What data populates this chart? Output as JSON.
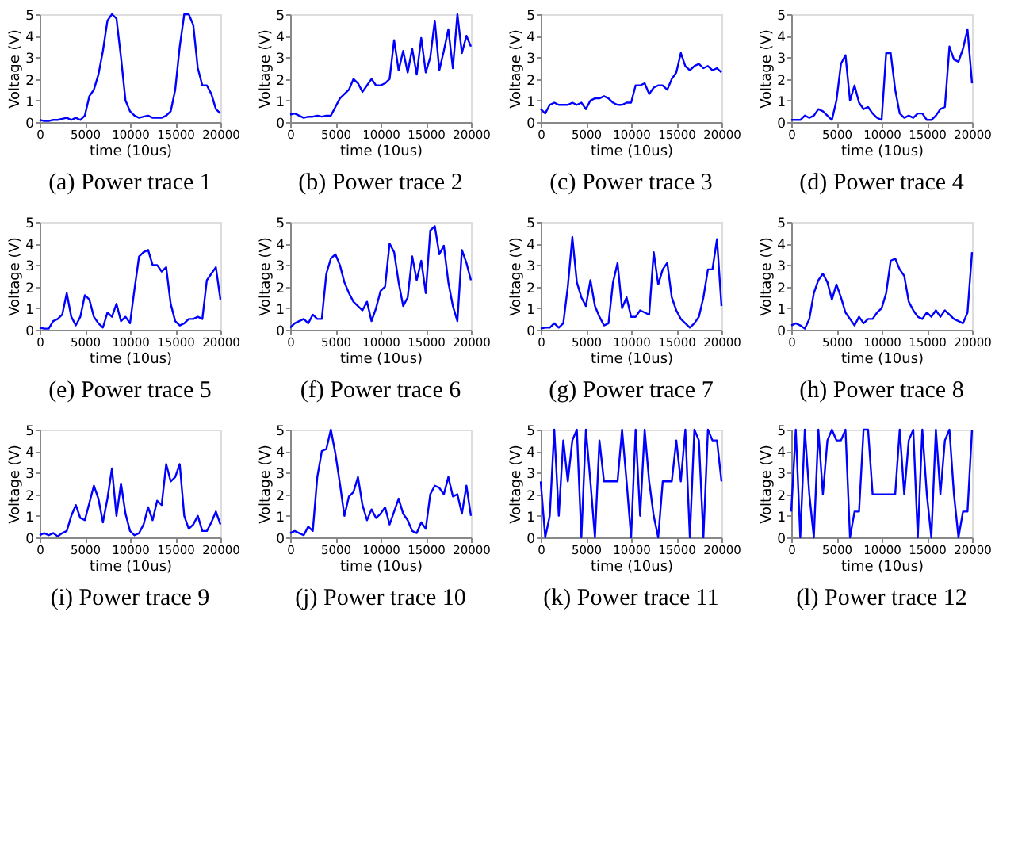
{
  "chart_data": [
    {
      "type": "line",
      "title": "(a) Power trace 1",
      "xlabel": "time (10us)",
      "ylabel": "Voltage (V)",
      "color": "#0000ff",
      "grid": false,
      "xlim": [
        0,
        20000
      ],
      "ylim": [
        0,
        5
      ],
      "xticks": [
        0,
        5000,
        10000,
        15000,
        20000
      ],
      "yticks": [
        0,
        1,
        2,
        3,
        4,
        5
      ],
      "x": [
        0,
        500,
        1000,
        1500,
        2000,
        2500,
        3000,
        3500,
        4000,
        4500,
        5000,
        5500,
        6000,
        6500,
        7000,
        7500,
        8000,
        8500,
        9000,
        9500,
        10000,
        10500,
        11000,
        11500,
        12000,
        12500,
        13000,
        13500,
        14000,
        14500,
        15000,
        15500,
        16000,
        16500,
        17000,
        17500,
        18000,
        18500,
        19000,
        19500,
        20000
      ],
      "values": [
        0.1,
        0.05,
        0.05,
        0.1,
        0.1,
        0.15,
        0.2,
        0.1,
        0.2,
        0.1,
        0.3,
        1.2,
        1.5,
        2.2,
        3.3,
        4.7,
        5,
        4.8,
        3.0,
        1.0,
        0.5,
        0.3,
        0.2,
        0.25,
        0.3,
        0.2,
        0.2,
        0.2,
        0.3,
        0.5,
        1.5,
        3.5,
        5,
        5,
        4.5,
        2.5,
        1.7,
        1.7,
        1.3,
        0.6,
        0.4
      ]
    },
    {
      "type": "line",
      "title": "(b) Power trace 2",
      "xlabel": "time (10us)",
      "ylabel": "Voltage (V)",
      "color": "#0000ff",
      "grid": false,
      "xlim": [
        0,
        20000
      ],
      "ylim": [
        0,
        5
      ],
      "xticks": [
        0,
        5000,
        10000,
        15000,
        20000
      ],
      "yticks": [
        0,
        1,
        2,
        3,
        4,
        5
      ],
      "x": [
        0,
        500,
        1000,
        1500,
        2000,
        2500,
        3000,
        3500,
        4000,
        4500,
        5000,
        5500,
        6000,
        6500,
        7000,
        7500,
        8000,
        8500,
        9000,
        9500,
        10000,
        10500,
        11000,
        11500,
        12000,
        12500,
        13000,
        13500,
        14000,
        14500,
        15000,
        15500,
        16000,
        16500,
        17000,
        17500,
        18000,
        18500,
        19000,
        19500,
        20000
      ],
      "values": [
        0.35,
        0.4,
        0.3,
        0.2,
        0.25,
        0.25,
        0.3,
        0.25,
        0.3,
        0.3,
        0.7,
        1.1,
        1.3,
        1.5,
        2.0,
        1.8,
        1.4,
        1.7,
        2.0,
        1.7,
        1.7,
        1.8,
        2.0,
        3.8,
        2.4,
        3.3,
        2.3,
        3.4,
        2.2,
        3.9,
        2.3,
        3.0,
        4.7,
        2.4,
        3.3,
        4.3,
        2.5,
        5.0,
        3.2,
        4.0,
        3.5
      ]
    },
    {
      "type": "line",
      "title": "(c) Power trace 3",
      "xlabel": "time (10us)",
      "ylabel": "Voltage (V)",
      "color": "#0000ff",
      "grid": false,
      "xlim": [
        0,
        20000
      ],
      "ylim": [
        0,
        5
      ],
      "xticks": [
        0,
        5000,
        10000,
        15000,
        20000
      ],
      "yticks": [
        0,
        1,
        2,
        3,
        4,
        5
      ],
      "x": [
        0,
        500,
        1000,
        1500,
        2000,
        2500,
        3000,
        3500,
        4000,
        4500,
        5000,
        5500,
        6000,
        6500,
        7000,
        7500,
        8000,
        8500,
        9000,
        9500,
        10000,
        10500,
        11000,
        11500,
        12000,
        12500,
        13000,
        13500,
        14000,
        14500,
        15000,
        15500,
        16000,
        16500,
        17000,
        17500,
        18000,
        18500,
        19000,
        19500,
        20000
      ],
      "values": [
        0.6,
        0.4,
        0.8,
        0.9,
        0.8,
        0.8,
        0.8,
        0.9,
        0.8,
        0.9,
        0.6,
        1.0,
        1.1,
        1.1,
        1.2,
        1.1,
        0.9,
        0.8,
        0.8,
        0.9,
        0.9,
        1.7,
        1.7,
        1.8,
        1.3,
        1.6,
        1.7,
        1.7,
        1.5,
        2.0,
        2.3,
        3.2,
        2.6,
        2.4,
        2.6,
        2.7,
        2.5,
        2.6,
        2.4,
        2.5,
        2.3
      ]
    },
    {
      "type": "line",
      "title": "(d) Power trace 4",
      "xlabel": "time (10us)",
      "ylabel": "Voltage (V)",
      "color": "#0000ff",
      "grid": false,
      "xlim": [
        0,
        20000
      ],
      "ylim": [
        0,
        5
      ],
      "xticks": [
        0,
        5000,
        10000,
        15000,
        20000
      ],
      "yticks": [
        0,
        1,
        2,
        3,
        4,
        5
      ],
      "x": [
        0,
        500,
        1000,
        1500,
        2000,
        2500,
        3000,
        3500,
        4000,
        4500,
        5000,
        5500,
        6000,
        6500,
        7000,
        7500,
        8000,
        8500,
        9000,
        9500,
        10000,
        10500,
        11000,
        11500,
        12000,
        12500,
        13000,
        13500,
        14000,
        14500,
        15000,
        15500,
        16000,
        16500,
        17000,
        17500,
        18000,
        18500,
        19000,
        19500,
        20000
      ],
      "values": [
        0.1,
        0.1,
        0.1,
        0.3,
        0.2,
        0.3,
        0.6,
        0.5,
        0.3,
        0.1,
        1.0,
        2.7,
        3.1,
        1.0,
        1.7,
        0.9,
        0.6,
        0.7,
        0.4,
        0.2,
        0.1,
        3.2,
        3.2,
        1.5,
        0.4,
        0.2,
        0.3,
        0.2,
        0.4,
        0.4,
        0.1,
        0.1,
        0.3,
        0.6,
        0.7,
        3.5,
        2.9,
        2.8,
        3.4,
        4.3,
        1.8
      ]
    },
    {
      "type": "line",
      "title": "(e) Power trace 5",
      "xlabel": "time (10us)",
      "ylabel": "Voltage (V)",
      "color": "#0000ff",
      "grid": false,
      "xlim": [
        0,
        20000
      ],
      "ylim": [
        0,
        5
      ],
      "xticks": [
        0,
        5000,
        10000,
        15000,
        20000
      ],
      "yticks": [
        0,
        1,
        2,
        3,
        4,
        5
      ],
      "x": [
        0,
        500,
        1000,
        1500,
        2000,
        2500,
        3000,
        3500,
        4000,
        4500,
        5000,
        5500,
        6000,
        6500,
        7000,
        7500,
        8000,
        8500,
        9000,
        9500,
        10000,
        10500,
        11000,
        11500,
        12000,
        12500,
        13000,
        13500,
        14000,
        14500,
        15000,
        15500,
        16000,
        16500,
        17000,
        17500,
        18000,
        18500,
        19000,
        19500,
        20000
      ],
      "values": [
        0.1,
        0.05,
        0.05,
        0.4,
        0.5,
        0.7,
        1.7,
        0.6,
        0.2,
        0.6,
        1.6,
        1.4,
        0.6,
        0.3,
        0.1,
        0.8,
        0.6,
        1.2,
        0.4,
        0.6,
        0.3,
        1.9,
        3.4,
        3.6,
        3.7,
        3.0,
        3.0,
        2.7,
        2.9,
        1.2,
        0.4,
        0.2,
        0.3,
        0.5,
        0.5,
        0.6,
        0.5,
        2.3,
        2.6,
        2.9,
        1.4
      ]
    },
    {
      "type": "line",
      "title": "(f) Power trace 6",
      "xlabel": "time (10us)",
      "ylabel": "Voltage (V)",
      "color": "#0000ff",
      "grid": false,
      "xlim": [
        0,
        20000
      ],
      "ylim": [
        0,
        5
      ],
      "xticks": [
        0,
        5000,
        10000,
        15000,
        20000
      ],
      "yticks": [
        0,
        1,
        2,
        3,
        4,
        5
      ],
      "x": [
        0,
        500,
        1000,
        1500,
        2000,
        2500,
        3000,
        3500,
        4000,
        4500,
        5000,
        5500,
        6000,
        6500,
        7000,
        7500,
        8000,
        8500,
        9000,
        9500,
        10000,
        10500,
        11000,
        11500,
        12000,
        12500,
        13000,
        13500,
        14000,
        14500,
        15000,
        15500,
        16000,
        16500,
        17000,
        17500,
        18000,
        18500,
        19000,
        19500,
        20000
      ],
      "values": [
        0.1,
        0.3,
        0.4,
        0.5,
        0.3,
        0.7,
        0.5,
        0.5,
        2.6,
        3.3,
        3.5,
        3.0,
        2.2,
        1.7,
        1.3,
        1.1,
        0.9,
        1.3,
        0.4,
        1.0,
        1.8,
        2.0,
        4.0,
        3.6,
        2.2,
        1.1,
        1.5,
        3.4,
        2.3,
        3.2,
        1.7,
        4.6,
        4.8,
        3.5,
        3.9,
        2.2,
        1.1,
        0.4,
        3.7,
        3.1,
        2.3
      ]
    },
    {
      "type": "line",
      "title": "(g) Power trace 7",
      "xlabel": "time (10us)",
      "ylabel": "Voltage (V)",
      "color": "#0000ff",
      "grid": false,
      "xlim": [
        0,
        20000
      ],
      "ylim": [
        0,
        5
      ],
      "xticks": [
        0,
        5000,
        10000,
        15000,
        20000
      ],
      "yticks": [
        0,
        1,
        2,
        3,
        4,
        5
      ],
      "x": [
        0,
        500,
        1000,
        1500,
        2000,
        2500,
        3000,
        3500,
        4000,
        4500,
        5000,
        5500,
        6000,
        6500,
        7000,
        7500,
        8000,
        8500,
        9000,
        9500,
        10000,
        10500,
        11000,
        11500,
        12000,
        12500,
        13000,
        13500,
        14000,
        14500,
        15000,
        15500,
        16000,
        16500,
        17000,
        17500,
        18000,
        18500,
        19000,
        19500,
        20000
      ],
      "values": [
        0.05,
        0.1,
        0.1,
        0.3,
        0.1,
        0.3,
        2.0,
        4.3,
        2.2,
        1.5,
        1.1,
        2.3,
        1.1,
        0.6,
        0.2,
        0.3,
        2.2,
        3.1,
        1.0,
        1.5,
        0.6,
        0.6,
        0.9,
        0.8,
        0.7,
        3.6,
        2.1,
        2.8,
        3.1,
        1.5,
        0.9,
        0.5,
        0.3,
        0.1,
        0.3,
        0.6,
        1.5,
        2.8,
        2.8,
        4.2,
        1.1
      ]
    },
    {
      "type": "line",
      "title": "(h) Power trace 8",
      "xlabel": "time (10us)",
      "ylabel": "Voltage (V)",
      "color": "#0000ff",
      "grid": false,
      "xlim": [
        0,
        20000
      ],
      "ylim": [
        0,
        5
      ],
      "xticks": [
        0,
        5000,
        10000,
        15000,
        20000
      ],
      "yticks": [
        0,
        1,
        2,
        3,
        4,
        5
      ],
      "x": [
        0,
        500,
        1000,
        1500,
        2000,
        2500,
        3000,
        3500,
        4000,
        4500,
        5000,
        5500,
        6000,
        6500,
        7000,
        7500,
        8000,
        8500,
        9000,
        9500,
        10000,
        10500,
        11000,
        11500,
        12000,
        12500,
        13000,
        13500,
        14000,
        14500,
        15000,
        15500,
        16000,
        16500,
        17000,
        17500,
        18000,
        18500,
        19000,
        19500,
        20000
      ],
      "values": [
        0.2,
        0.3,
        0.2,
        0.05,
        0.5,
        1.7,
        2.3,
        2.6,
        2.2,
        1.4,
        2.1,
        1.5,
        0.8,
        0.5,
        0.2,
        0.6,
        0.3,
        0.5,
        0.5,
        0.8,
        1.0,
        1.7,
        3.2,
        3.3,
        2.8,
        2.5,
        1.3,
        0.9,
        0.6,
        0.5,
        0.8,
        0.6,
        0.9,
        0.6,
        0.9,
        0.7,
        0.5,
        0.4,
        0.3,
        0.8,
        3.6
      ]
    },
    {
      "type": "line",
      "title": "(i) Power trace 9",
      "xlabel": "time (10us)",
      "ylabel": "Voltage (V)",
      "color": "#0000ff",
      "grid": false,
      "xlim": [
        0,
        20000
      ],
      "ylim": [
        0,
        5
      ],
      "xticks": [
        0,
        5000,
        10000,
        15000,
        20000
      ],
      "yticks": [
        0,
        1,
        2,
        3,
        4,
        5
      ],
      "x": [
        0,
        500,
        1000,
        1500,
        2000,
        2500,
        3000,
        3500,
        4000,
        4500,
        5000,
        5500,
        6000,
        6500,
        7000,
        7500,
        8000,
        8500,
        9000,
        9500,
        10000,
        10500,
        11000,
        11500,
        12000,
        12500,
        13000,
        13500,
        14000,
        14500,
        15000,
        15500,
        16000,
        16500,
        17000,
        17500,
        18000,
        18500,
        19000,
        19500,
        20000
      ],
      "values": [
        0.1,
        0.2,
        0.1,
        0.2,
        0.05,
        0.2,
        0.3,
        1.0,
        1.5,
        0.9,
        0.8,
        1.6,
        2.4,
        1.8,
        0.7,
        1.8,
        3.2,
        1.0,
        2.5,
        1.1,
        0.3,
        0.1,
        0.2,
        0.6,
        1.4,
        0.8,
        1.7,
        1.5,
        3.4,
        2.6,
        2.8,
        3.4,
        1.0,
        0.4,
        0.6,
        1.0,
        0.3,
        0.3,
        0.7,
        1.2,
        0.6
      ]
    },
    {
      "type": "line",
      "title": "(j) Power trace 10",
      "xlabel": "time (10us)",
      "ylabel": "Voltage (V)",
      "color": "#0000ff",
      "grid": false,
      "xlim": [
        0,
        20000
      ],
      "ylim": [
        0,
        5
      ],
      "xticks": [
        0,
        5000,
        10000,
        15000,
        20000
      ],
      "yticks": [
        0,
        1,
        2,
        3,
        4,
        5
      ],
      "x": [
        0,
        500,
        1000,
        1500,
        2000,
        2500,
        3000,
        3500,
        4000,
        4500,
        5000,
        5500,
        6000,
        6500,
        7000,
        7500,
        8000,
        8500,
        9000,
        9500,
        10000,
        10500,
        11000,
        11500,
        12000,
        12500,
        13000,
        13500,
        14000,
        14500,
        15000,
        15500,
        16000,
        16500,
        17000,
        17500,
        18000,
        18500,
        19000,
        19500,
        20000
      ],
      "values": [
        0.2,
        0.3,
        0.2,
        0.1,
        0.5,
        0.3,
        2.8,
        4.0,
        4.1,
        5.0,
        3.9,
        2.5,
        1.0,
        1.9,
        2.1,
        2.8,
        1.5,
        0.8,
        1.3,
        0.9,
        1.1,
        1.4,
        0.6,
        1.2,
        1.8,
        1.1,
        0.8,
        0.3,
        0.2,
        0.7,
        0.4,
        2.0,
        2.4,
        2.3,
        2.0,
        2.8,
        1.9,
        2.0,
        1.1,
        2.4,
        1.0
      ]
    },
    {
      "type": "line",
      "title": "(k) Power trace 11",
      "xlabel": "time (10us)",
      "ylabel": "Voltage (V)",
      "color": "#0000ff",
      "grid": false,
      "xlim": [
        0,
        20000
      ],
      "ylim": [
        0,
        5
      ],
      "xticks": [
        0,
        5000,
        10000,
        15000,
        20000
      ],
      "yticks": [
        0,
        1,
        2,
        3,
        4,
        5
      ],
      "x": [
        0,
        500,
        1000,
        1500,
        2000,
        2500,
        3000,
        3500,
        4000,
        4500,
        5000,
        5500,
        6000,
        6500,
        7000,
        7500,
        8000,
        8500,
        9000,
        9500,
        10000,
        10500,
        11000,
        11500,
        12000,
        12500,
        13000,
        13500,
        14000,
        14500,
        15000,
        15500,
        16000,
        16500,
        17000,
        17500,
        18000,
        18500,
        19000,
        19500,
        20000
      ],
      "values": [
        2.6,
        0,
        1,
        5,
        1,
        4.5,
        2.6,
        4.5,
        5,
        0,
        5,
        2.6,
        0,
        4.5,
        2.6,
        2.6,
        2.6,
        2.6,
        5,
        2.6,
        0,
        5,
        1,
        5,
        2.6,
        1,
        0,
        2.6,
        2.6,
        2.6,
        4.5,
        2.6,
        5,
        0,
        5,
        4.5,
        0,
        5,
        4.5,
        4.5,
        2.6
      ]
    },
    {
      "type": "line",
      "title": "(l) Power trace 12",
      "xlabel": "time (10us)",
      "ylabel": "Voltage (V)",
      "color": "#0000ff",
      "grid": false,
      "xlim": [
        0,
        20000
      ],
      "ylim": [
        0,
        5
      ],
      "xticks": [
        0,
        5000,
        10000,
        15000,
        20000
      ],
      "yticks": [
        0,
        1,
        2,
        3,
        4,
        5
      ],
      "x": [
        0,
        500,
        1000,
        1500,
        2000,
        2500,
        3000,
        3500,
        4000,
        4500,
        5000,
        5500,
        6000,
        6500,
        7000,
        7500,
        8000,
        8500,
        9000,
        9500,
        10000,
        10500,
        11000,
        11500,
        12000,
        12500,
        13000,
        13500,
        14000,
        14500,
        15000,
        15500,
        16000,
        16500,
        17000,
        17500,
        18000,
        18500,
        19000,
        19500,
        20000
      ],
      "values": [
        1.2,
        5,
        0,
        5,
        2,
        0,
        5,
        2,
        4.5,
        5,
        4.5,
        4.5,
        5,
        0,
        1.2,
        1.2,
        5,
        5,
        2,
        2,
        2,
        2,
        2,
        2,
        5,
        2,
        4.5,
        5,
        0,
        5,
        2,
        0,
        5,
        2,
        4.5,
        5,
        2,
        0,
        1.2,
        1.2,
        5
      ]
    }
  ]
}
